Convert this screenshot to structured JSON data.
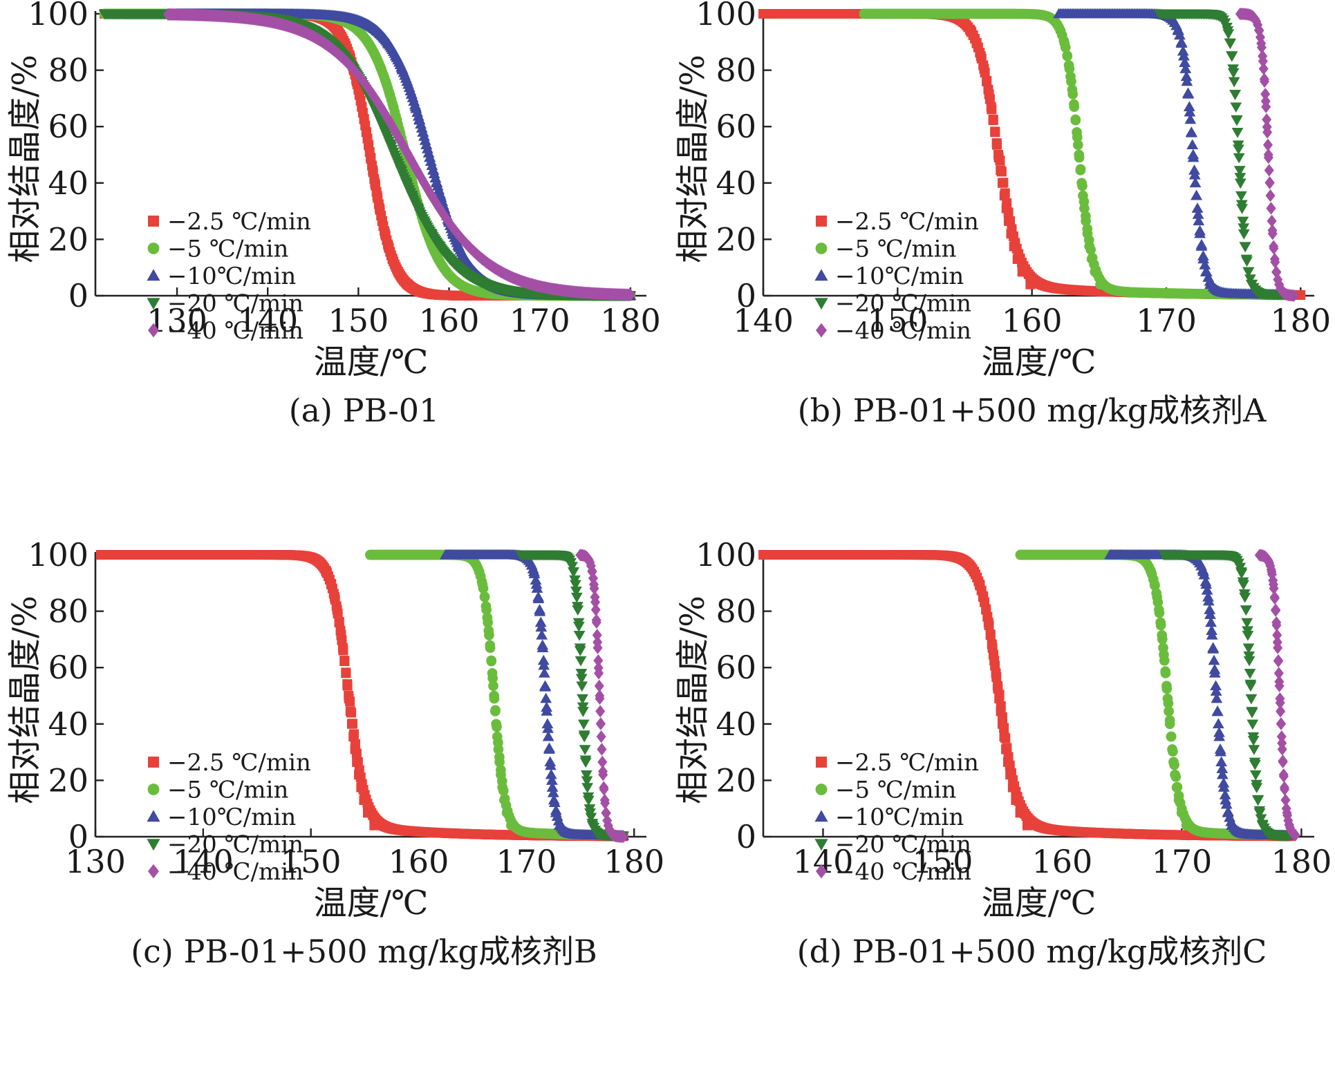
{
  "chart_data": [
    {
      "type": "scatter",
      "caption": "(a) PB-01",
      "xlabel": "温度/℃",
      "ylabel": "相对结晶度/%",
      "xlim": [
        121,
        181
      ],
      "ylim": [
        0,
        100
      ],
      "xticks": [
        130,
        140,
        150,
        160,
        170,
        180
      ],
      "yticks": [
        0,
        20,
        40,
        60,
        80,
        100
      ],
      "legend_position": "left-middle",
      "series": [
        {
          "name": "−2.5 ℃/min",
          "color": "#e8413a",
          "marker": "square",
          "x_start": 122,
          "x_end": 180,
          "t_half": 151.3,
          "width": 1.3,
          "tail": 0
        },
        {
          "name": "−5 ℃/min",
          "color": "#6abd3c",
          "marker": "circle",
          "x_start": 122,
          "x_end": 180,
          "t_half": 155.2,
          "width": 1.9,
          "tail": 0
        },
        {
          "name": "−10℃/min",
          "color": "#3f4aa0",
          "marker": "triangle-up",
          "x_start": 130,
          "x_end": 180,
          "t_half": 157.8,
          "width": 2.1,
          "tail": 0
        },
        {
          "name": "−20 ℃/min",
          "color": "#2e7d32",
          "marker": "triangle-down",
          "x_start": 122,
          "x_end": 180,
          "t_half": 154.0,
          "width": 3.2,
          "tail": 0
        },
        {
          "name": "−40 ℃/min",
          "color": "#a44fa6",
          "marker": "diamond",
          "x_start": 129,
          "x_end": 180,
          "t_half": 155.5,
          "width": 4.3,
          "tail": 0
        }
      ]
    },
    {
      "type": "scatter",
      "caption": "(b) PB-01+500 mg/kg成核剂A",
      "xlabel": "温度/℃",
      "ylabel": "相对结晶度/%",
      "xlim": [
        140,
        180.5
      ],
      "ylim": [
        0,
        100
      ],
      "xticks": [
        140,
        150,
        160,
        170,
        180
      ],
      "yticks": [
        0,
        20,
        40,
        60,
        80,
        100
      ],
      "legend_position": "left-middle",
      "series": [
        {
          "name": "−2.5 ℃/min",
          "color": "#e8413a",
          "marker": "square",
          "x_start": 140,
          "x_end": 180,
          "t_half": 157.5,
          "width": 0.75,
          "tail": 4
        },
        {
          "name": "−5 ℃/min",
          "color": "#6abd3c",
          "marker": "circle",
          "x_start": 147.5,
          "x_end": 179,
          "t_half": 163.5,
          "width": 0.5,
          "tail": 2
        },
        {
          "name": "−10℃/min",
          "color": "#3f4aa0",
          "marker": "triangle-up",
          "x_start": 162,
          "x_end": 179,
          "t_half": 172.0,
          "width": 0.4,
          "tail": 1
        },
        {
          "name": "−20 ℃/min",
          "color": "#2e7d32",
          "marker": "triangle-down",
          "x_start": 169.5,
          "x_end": 179,
          "t_half": 175.4,
          "width": 0.3,
          "tail": 0.5
        },
        {
          "name": "−40 ℃/min",
          "color": "#a44fa6",
          "marker": "diamond",
          "x_start": 175.5,
          "x_end": 179.5,
          "t_half": 177.6,
          "width": 0.25,
          "tail": 0
        }
      ]
    },
    {
      "type": "scatter",
      "caption": "(c) PB-01+500 mg/kg成核剂B",
      "xlabel": "温度/℃",
      "ylabel": "相对结晶度/%",
      "xlim": [
        130,
        180.5
      ],
      "ylim": [
        0,
        100
      ],
      "xticks": [
        130,
        140,
        150,
        160,
        170,
        180
      ],
      "yticks": [
        0,
        20,
        40,
        60,
        80,
        100
      ],
      "legend_position": "left-middle",
      "series": [
        {
          "name": "−2.5 ℃/min",
          "color": "#e8413a",
          "marker": "square",
          "x_start": 130.5,
          "x_end": 179,
          "t_half": 153.5,
          "width": 0.75,
          "tail": 4
        },
        {
          "name": "−5 ℃/min",
          "color": "#6abd3c",
          "marker": "circle",
          "x_start": 155.5,
          "x_end": 178.5,
          "t_half": 167.0,
          "width": 0.5,
          "tail": 2
        },
        {
          "name": "−10℃/min",
          "color": "#3f4aa0",
          "marker": "triangle-up",
          "x_start": 162.5,
          "x_end": 179,
          "t_half": 171.8,
          "width": 0.4,
          "tail": 1
        },
        {
          "name": "−20 ℃/min",
          "color": "#2e7d32",
          "marker": "triangle-down",
          "x_start": 169.5,
          "x_end": 179,
          "t_half": 175.2,
          "width": 0.3,
          "tail": 0.5
        },
        {
          "name": "−40 ℃/min",
          "color": "#a44fa6",
          "marker": "diamond",
          "x_start": 175,
          "x_end": 179,
          "t_half": 176.8,
          "width": 0.25,
          "tail": 0
        }
      ]
    },
    {
      "type": "scatter",
      "caption": "(d) PB-01+500 mg/kg成核剂C",
      "xlabel": "温度/℃",
      "ylabel": "相对结晶度/%",
      "xlim": [
        135,
        180.5
      ],
      "ylim": [
        0,
        100
      ],
      "xticks": [
        140,
        150,
        160,
        170,
        180
      ],
      "yticks": [
        0,
        20,
        40,
        60,
        80,
        100
      ],
      "legend_position": "left-middle",
      "series": [
        {
          "name": "−2.5 ℃/min",
          "color": "#e8413a",
          "marker": "square",
          "x_start": 135,
          "x_end": 179,
          "t_half": 154.7,
          "width": 0.75,
          "tail": 4
        },
        {
          "name": "−5 ℃/min",
          "color": "#6abd3c",
          "marker": "circle",
          "x_start": 156.5,
          "x_end": 179,
          "t_half": 168.8,
          "width": 0.5,
          "tail": 2
        },
        {
          "name": "−10℃/min",
          "color": "#3f4aa0",
          "marker": "triangle-up",
          "x_start": 164,
          "x_end": 179,
          "t_half": 172.9,
          "width": 0.4,
          "tail": 1
        },
        {
          "name": "−20 ℃/min",
          "color": "#2e7d32",
          "marker": "triangle-down",
          "x_start": 168.5,
          "x_end": 179,
          "t_half": 175.8,
          "width": 0.3,
          "tail": 0.5
        },
        {
          "name": "−40 ℃/min",
          "color": "#a44fa6",
          "marker": "diamond",
          "x_start": 176.5,
          "x_end": 179.5,
          "t_half": 178.2,
          "width": 0.25,
          "tail": 0
        }
      ]
    }
  ]
}
